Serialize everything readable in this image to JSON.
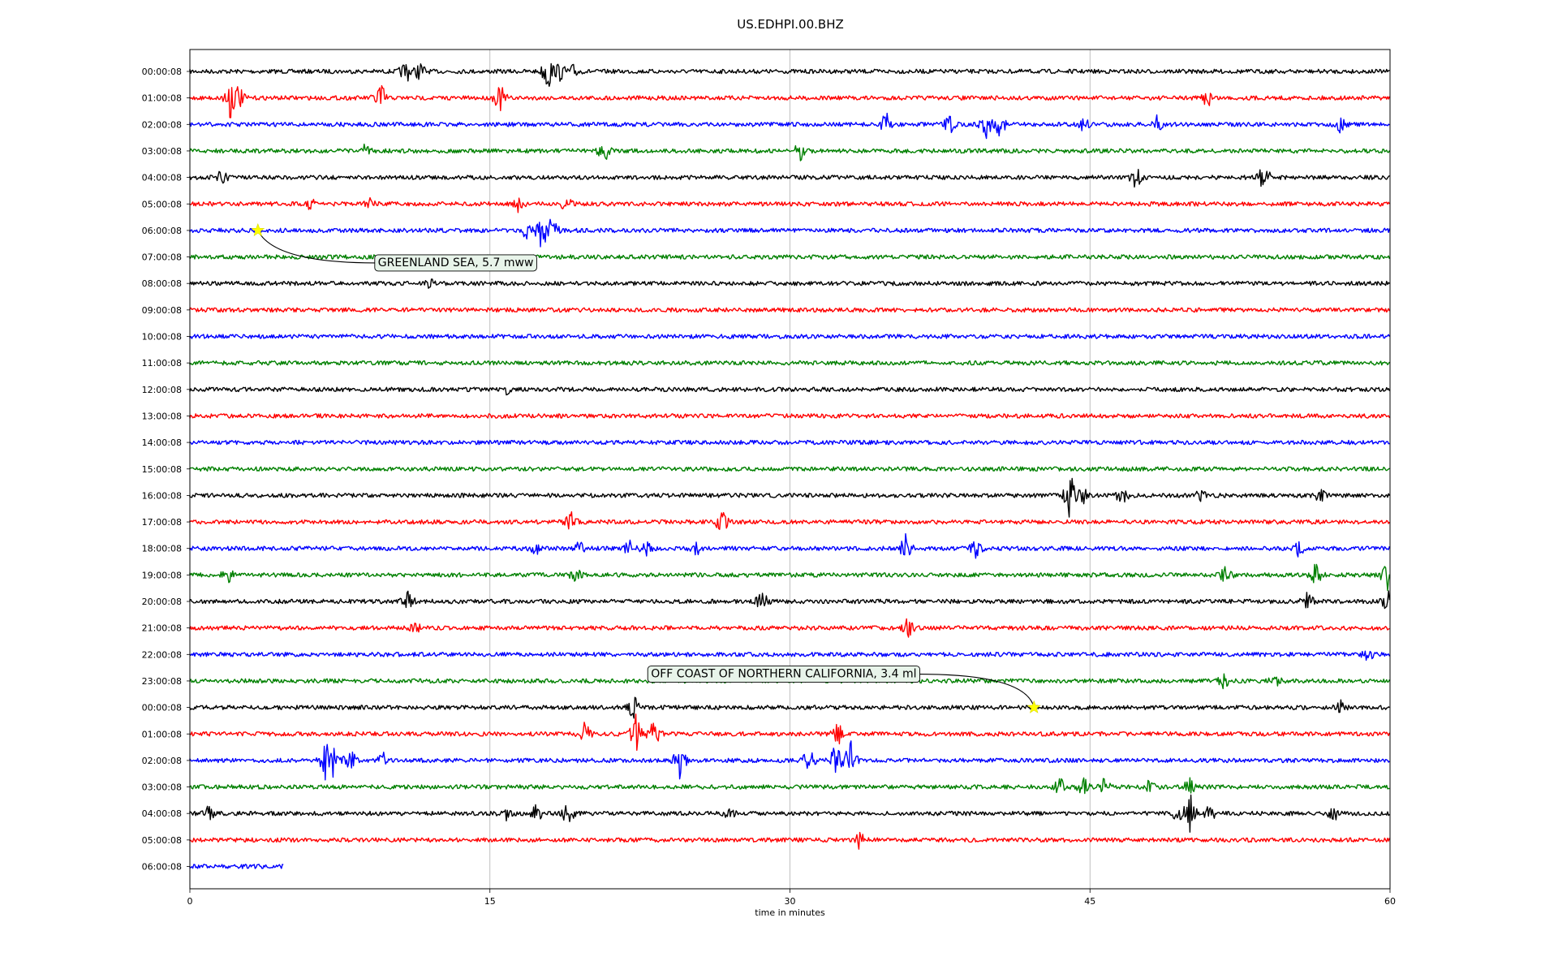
{
  "chart_data": {
    "type": "line",
    "title": "US.EDHPI.00.BHZ",
    "xlabel": "time in minutes",
    "ylabel": "",
    "xlim": [
      0,
      60
    ],
    "xticks": [
      0,
      15,
      30,
      45,
      60
    ],
    "grid": "vertical",
    "colors": [
      "#000000",
      "#ff0000",
      "#0000ff",
      "#008000"
    ],
    "rows": [
      {
        "label": "00:00:08",
        "end": 60,
        "events": [
          {
            "t": 10.8,
            "a": 0.5
          },
          {
            "t": 11.5,
            "a": 0.4
          },
          {
            "t": 17.9,
            "a": 0.9
          },
          {
            "t": 18.5,
            "a": 0.4
          },
          {
            "t": 19.2,
            "a": 0.3
          }
        ]
      },
      {
        "label": "01:00:08",
        "end": 60,
        "events": [
          {
            "t": 2.0,
            "a": 1.0
          },
          {
            "t": 2.4,
            "a": 0.6
          },
          {
            "t": 9.5,
            "a": 0.8
          },
          {
            "t": 15.5,
            "a": 0.6
          },
          {
            "t": 50.9,
            "a": 0.4
          }
        ]
      },
      {
        "label": "02:00:08",
        "end": 60,
        "events": [
          {
            "t": 34.8,
            "a": 0.5
          },
          {
            "t": 38.0,
            "a": 0.4
          },
          {
            "t": 39.8,
            "a": 0.6
          },
          {
            "t": 40.5,
            "a": 0.5
          },
          {
            "t": 44.7,
            "a": 0.3
          },
          {
            "t": 48.3,
            "a": 0.4
          },
          {
            "t": 57.5,
            "a": 0.3
          }
        ]
      },
      {
        "label": "03:00:08",
        "end": 60,
        "events": [
          {
            "t": 8.7,
            "a": 0.3
          },
          {
            "t": 20.7,
            "a": 0.5
          },
          {
            "t": 30.5,
            "a": 0.4
          }
        ]
      },
      {
        "label": "04:00:08",
        "end": 60,
        "events": [
          {
            "t": 1.6,
            "a": 0.3
          },
          {
            "t": 47.3,
            "a": 0.5
          },
          {
            "t": 53.7,
            "a": 0.6
          }
        ]
      },
      {
        "label": "05:00:08",
        "end": 60,
        "events": [
          {
            "t": 6.1,
            "a": 0.3
          },
          {
            "t": 9.0,
            "a": 0.3
          },
          {
            "t": 16.4,
            "a": 0.4
          },
          {
            "t": 18.8,
            "a": 0.3
          }
        ]
      },
      {
        "label": "06:00:08",
        "end": 60,
        "events": [
          {
            "t": 16.8,
            "a": 0.5
          },
          {
            "t": 17.6,
            "a": 1.0
          },
          {
            "t": 18.1,
            "a": 0.6
          }
        ]
      },
      {
        "label": "07:00:08",
        "end": 60,
        "events": []
      },
      {
        "label": "08:00:08",
        "end": 60,
        "events": [
          {
            "t": 12.0,
            "a": 0.2
          }
        ]
      },
      {
        "label": "09:00:08",
        "end": 60,
        "events": []
      },
      {
        "label": "10:00:08",
        "end": 60,
        "events": []
      },
      {
        "label": "11:00:08",
        "end": 60,
        "events": []
      },
      {
        "label": "12:00:08",
        "end": 60,
        "events": [
          {
            "t": 15.9,
            "a": 0.2
          }
        ]
      },
      {
        "label": "13:00:08",
        "end": 60,
        "events": []
      },
      {
        "label": "14:00:08",
        "end": 60,
        "events": []
      },
      {
        "label": "15:00:08",
        "end": 60,
        "events": []
      },
      {
        "label": "16:00:08",
        "end": 60,
        "events": [
          {
            "t": 44.0,
            "a": 1.0
          },
          {
            "t": 44.6,
            "a": 0.4
          },
          {
            "t": 46.6,
            "a": 0.4
          },
          {
            "t": 50.5,
            "a": 0.3
          },
          {
            "t": 56.5,
            "a": 0.3
          }
        ]
      },
      {
        "label": "17:00:08",
        "end": 60,
        "events": [
          {
            "t": 19.0,
            "a": 0.6
          },
          {
            "t": 26.6,
            "a": 0.6
          }
        ]
      },
      {
        "label": "18:00:08",
        "end": 60,
        "events": [
          {
            "t": 17.3,
            "a": 0.3
          },
          {
            "t": 19.5,
            "a": 0.3
          },
          {
            "t": 22.0,
            "a": 0.4
          },
          {
            "t": 22.8,
            "a": 0.3
          },
          {
            "t": 25.3,
            "a": 0.3
          },
          {
            "t": 35.8,
            "a": 0.7
          },
          {
            "t": 39.3,
            "a": 0.4
          },
          {
            "t": 55.4,
            "a": 0.4
          }
        ]
      },
      {
        "label": "19:00:08",
        "end": 60,
        "events": [
          {
            "t": 1.9,
            "a": 0.3
          },
          {
            "t": 19.3,
            "a": 0.3
          },
          {
            "t": 51.8,
            "a": 0.4
          },
          {
            "t": 56.3,
            "a": 0.5
          },
          {
            "t": 59.9,
            "a": 0.9
          }
        ]
      },
      {
        "label": "20:00:08",
        "end": 60,
        "events": [
          {
            "t": 10.9,
            "a": 0.4
          },
          {
            "t": 28.6,
            "a": 0.5
          },
          {
            "t": 55.9,
            "a": 0.4
          },
          {
            "t": 59.9,
            "a": 0.6
          }
        ]
      },
      {
        "label": "21:00:08",
        "end": 60,
        "events": [
          {
            "t": 11.3,
            "a": 0.2
          },
          {
            "t": 35.9,
            "a": 0.4
          }
        ]
      },
      {
        "label": "22:00:08",
        "end": 60,
        "events": [
          {
            "t": 58.9,
            "a": 0.3
          }
        ]
      },
      {
        "label": "23:00:08",
        "end": 60,
        "events": [
          {
            "t": 51.7,
            "a": 0.3
          },
          {
            "t": 54.3,
            "a": 0.3
          }
        ]
      },
      {
        "label": "00:00:08",
        "end": 60,
        "events": [
          {
            "t": 22.2,
            "a": 0.5
          },
          {
            "t": 57.5,
            "a": 0.3
          }
        ]
      },
      {
        "label": "01:00:08",
        "end": 60,
        "events": [
          {
            "t": 19.7,
            "a": 0.6
          },
          {
            "t": 22.3,
            "a": 0.8
          },
          {
            "t": 23.2,
            "a": 0.7
          },
          {
            "t": 32.4,
            "a": 0.5
          }
        ]
      },
      {
        "label": "02:00:08",
        "end": 60,
        "events": [
          {
            "t": 6.8,
            "a": 1.0
          },
          {
            "t": 7.2,
            "a": 0.9
          },
          {
            "t": 8.0,
            "a": 0.5
          },
          {
            "t": 9.6,
            "a": 0.4
          },
          {
            "t": 24.5,
            "a": 0.8
          },
          {
            "t": 30.9,
            "a": 0.7
          },
          {
            "t": 32.3,
            "a": 0.8
          },
          {
            "t": 33.0,
            "a": 1.0
          }
        ]
      },
      {
        "label": "03:00:08",
        "end": 60,
        "events": [
          {
            "t": 43.5,
            "a": 0.4
          },
          {
            "t": 44.7,
            "a": 0.5
          },
          {
            "t": 45.7,
            "a": 0.4
          },
          {
            "t": 48.0,
            "a": 0.3
          },
          {
            "t": 50.0,
            "a": 0.4
          }
        ]
      },
      {
        "label": "04:00:08",
        "end": 60,
        "events": [
          {
            "t": 0.9,
            "a": 0.4
          },
          {
            "t": 15.8,
            "a": 0.4
          },
          {
            "t": 17.3,
            "a": 0.4
          },
          {
            "t": 18.9,
            "a": 0.5
          },
          {
            "t": 27.0,
            "a": 0.3
          },
          {
            "t": 49.4,
            "a": 0.5
          },
          {
            "t": 50.0,
            "a": 1.0
          },
          {
            "t": 51.0,
            "a": 0.4
          },
          {
            "t": 57.2,
            "a": 0.3
          }
        ]
      },
      {
        "label": "05:00:08",
        "end": 60,
        "events": [
          {
            "t": 33.5,
            "a": 0.4
          }
        ]
      },
      {
        "label": "06:00:08",
        "end": 4.7,
        "events": []
      }
    ],
    "annotations": [
      {
        "text": "GREENLAND SEA, 5.7 mww",
        "row": 6,
        "t": 3.4
      },
      {
        "text": "OFF COAST OF NORTHERN CALIFORNIA, 3.4 ml",
        "row": 24,
        "t": 42.2
      }
    ]
  }
}
